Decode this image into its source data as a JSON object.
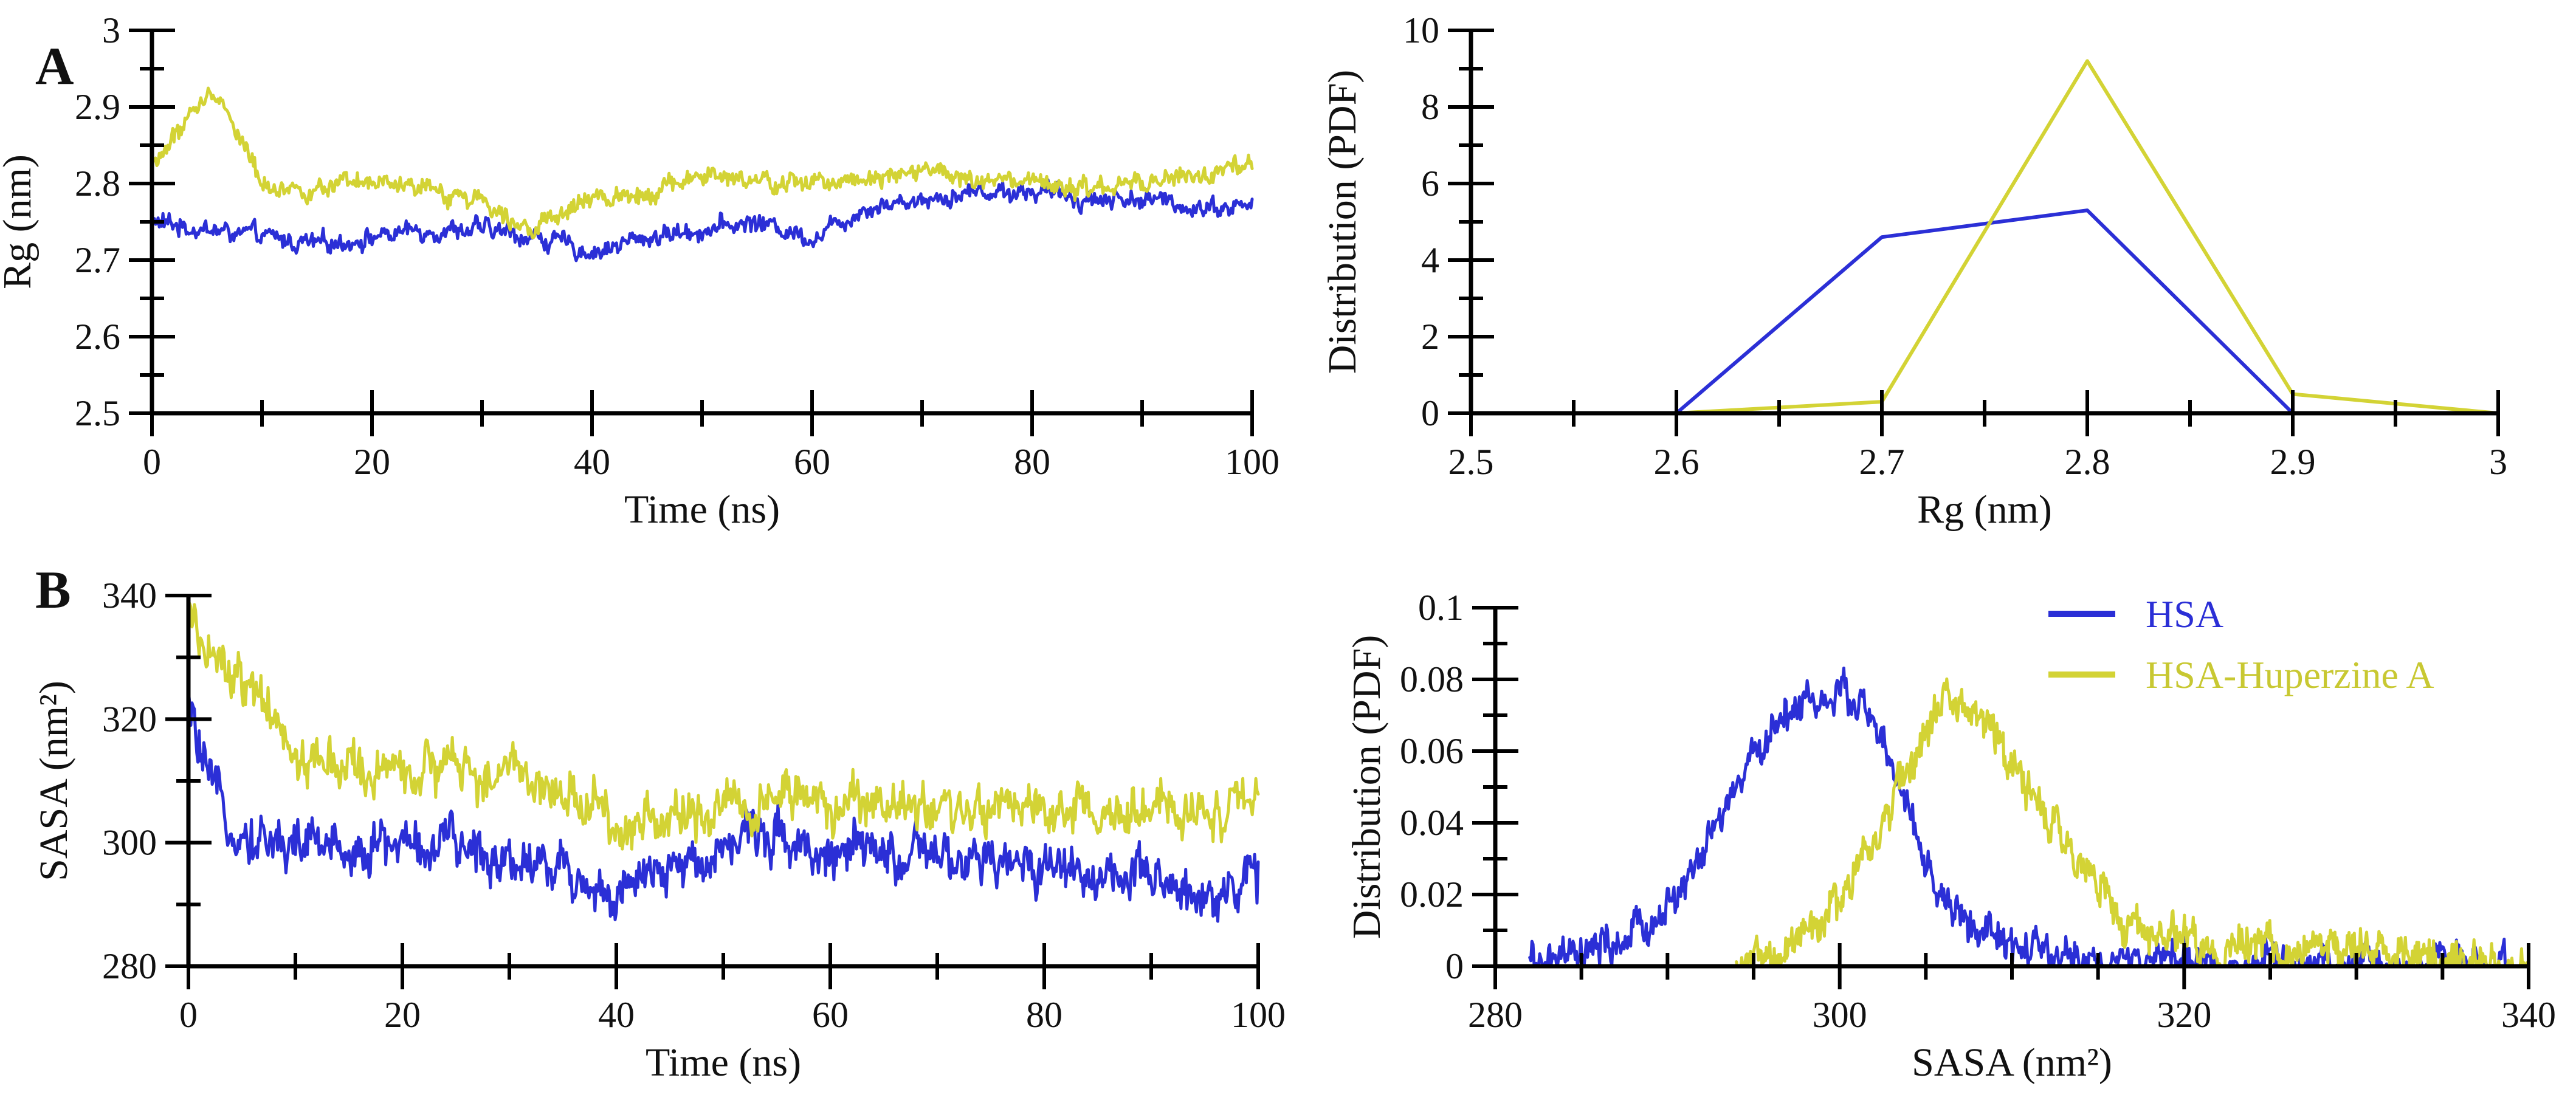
{
  "colors": {
    "hsa": "#2b2fd6",
    "hsa_huperzine_a": "#d3d335",
    "axis": "#000000"
  },
  "legend": [
    {
      "name": "HSA",
      "color": "#2b2fd6"
    },
    {
      "name": "HSA-Huperzine A",
      "color": "#d3d335"
    }
  ],
  "panel_labels": [
    "A",
    "B"
  ],
  "chart_data": [
    {
      "id": "rg-time",
      "type": "line",
      "panel": "A",
      "xlabel": "Time (ns)",
      "ylabel": "Rg (nm)",
      "xlim": [
        0,
        100
      ],
      "ylim": [
        2.5,
        3.0
      ],
      "x_ticks": [
        0,
        20,
        40,
        60,
        80,
        100
      ],
      "x_tick_labels": [
        "0",
        "20",
        "40",
        "60",
        "80",
        "100"
      ],
      "x_minor_step": 10,
      "y_ticks": [
        2.5,
        2.6,
        2.7,
        2.8,
        2.9,
        3.0
      ],
      "y_tick_labels": [
        "2.5",
        "2.6",
        "2.7",
        "2.8",
        "2.9",
        "3"
      ],
      "y_minor_step": 0.05,
      "noisy": true,
      "noise": 0.014,
      "series": [
        {
          "name": "HSA",
          "color": "#2b2fd6",
          "x": [
            0,
            5,
            10,
            15,
            20,
            25,
            30,
            35,
            40,
            45,
            50,
            55,
            60,
            65,
            70,
            75,
            80,
            85,
            90,
            95,
            100
          ],
          "y": [
            2.75,
            2.74,
            2.73,
            2.72,
            2.73,
            2.74,
            2.74,
            2.73,
            2.71,
            2.73,
            2.74,
            2.75,
            2.73,
            2.77,
            2.78,
            2.79,
            2.79,
            2.78,
            2.78,
            2.77,
            2.77
          ]
        },
        {
          "name": "HSA-Huperzine A",
          "color": "#d3d335",
          "x": [
            0,
            2,
            4,
            6,
            8,
            10,
            15,
            20,
            25,
            30,
            35,
            40,
            45,
            50,
            55,
            60,
            65,
            70,
            75,
            80,
            85,
            90,
            95,
            100
          ],
          "y": [
            2.82,
            2.86,
            2.9,
            2.92,
            2.86,
            2.8,
            2.79,
            2.8,
            2.79,
            2.78,
            2.74,
            2.78,
            2.79,
            2.81,
            2.8,
            2.8,
            2.81,
            2.82,
            2.8,
            2.8,
            2.79,
            2.8,
            2.81,
            2.82
          ]
        }
      ]
    },
    {
      "id": "rg-dist",
      "type": "line",
      "panel": "A",
      "xlabel": "Rg (nm)",
      "ylabel": "Distribution (PDF)",
      "xlim": [
        2.5,
        3.0
      ],
      "ylim": [
        0,
        10
      ],
      "x_ticks": [
        2.5,
        2.6,
        2.7,
        2.8,
        2.9,
        3.0
      ],
      "x_tick_labels": [
        "2.5",
        "2.6",
        "2.7",
        "2.8",
        "2.9",
        "3"
      ],
      "x_minor_step": 0.05,
      "y_ticks": [
        0,
        2,
        4,
        6,
        8,
        10
      ],
      "y_tick_labels": [
        "0",
        "2",
        "4",
        "6",
        "8",
        "10"
      ],
      "y_minor_step": 1,
      "noisy": false,
      "series": [
        {
          "name": "HSA",
          "color": "#2b2fd6",
          "x": [
            2.6,
            2.7,
            2.8,
            2.9,
            3.0
          ],
          "y": [
            0,
            4.6,
            5.3,
            0,
            0
          ]
        },
        {
          "name": "HSA-Huperzine A",
          "color": "#d3d335",
          "x": [
            2.6,
            2.7,
            2.8,
            2.9,
            3.0
          ],
          "y": [
            0,
            0.3,
            9.2,
            0.5,
            0
          ]
        }
      ]
    },
    {
      "id": "sasa-time",
      "type": "line",
      "panel": "B",
      "xlabel": "Time (ns)",
      "ylabel": "SASA (nm²)",
      "xlim": [
        0,
        100
      ],
      "ylim": [
        280,
        340
      ],
      "x_ticks": [
        0,
        20,
        40,
        60,
        80,
        100
      ],
      "x_tick_labels": [
        "0",
        "20",
        "40",
        "60",
        "80",
        "100"
      ],
      "x_minor_step": 10,
      "y_ticks": [
        280,
        300,
        320,
        340
      ],
      "y_tick_labels": [
        "280",
        "300",
        "320",
        "340"
      ],
      "y_minor_step": 10,
      "noisy": true,
      "noise": 4.5,
      "series": [
        {
          "name": "HSA",
          "color": "#2b2fd6",
          "x": [
            0,
            2,
            5,
            8,
            10,
            15,
            20,
            25,
            30,
            35,
            40,
            45,
            50,
            55,
            60,
            65,
            70,
            75,
            80,
            85,
            90,
            95,
            100
          ],
          "y": [
            322,
            308,
            302,
            300,
            300,
            299,
            300,
            299,
            298,
            296,
            291,
            295,
            300,
            302,
            298,
            298,
            297,
            296,
            297,
            295,
            293,
            292,
            294
          ]
        },
        {
          "name": "HSA-Huperzine A",
          "color": "#d3d335",
          "x": [
            0,
            2,
            5,
            8,
            10,
            15,
            20,
            25,
            30,
            35,
            40,
            45,
            50,
            55,
            60,
            65,
            70,
            75,
            80,
            85,
            90,
            95,
            100
          ],
          "y": [
            336,
            330,
            326,
            319,
            314,
            312,
            311,
            312,
            311,
            309,
            303,
            304,
            306,
            308,
            305,
            306,
            305,
            306,
            304,
            305,
            304,
            305,
            307
          ]
        }
      ]
    },
    {
      "id": "sasa-dist",
      "type": "line",
      "panel": "B",
      "xlabel": "SASA (nm²)",
      "ylabel": "Distribution (PDF)",
      "xlim": [
        280,
        340
      ],
      "ylim": [
        0,
        0.1
      ],
      "x_ticks": [
        280,
        300,
        320,
        340
      ],
      "x_tick_labels": [
        "280",
        "300",
        "320",
        "340"
      ],
      "x_minor_step": 5,
      "y_ticks": [
        0,
        0.02,
        0.04,
        0.06,
        0.08,
        0.1
      ],
      "y_tick_labels": [
        "0",
        "0.02",
        "0.04",
        "0.06",
        "0.08",
        "0.1"
      ],
      "y_minor_step": 0.01,
      "noisy": true,
      "noise": 0.006,
      "legend": "top-right",
      "series": [
        {
          "name": "HSA",
          "color": "#2b2fd6",
          "x": [
            282,
            285,
            288,
            290,
            292,
            294,
            296,
            298,
            300,
            301,
            302,
            303,
            304,
            305,
            306,
            308,
            310,
            312,
            314,
            316,
            318,
            320,
            325,
            330,
            335,
            340
          ],
          "y": [
            0,
            0.002,
            0.008,
            0.016,
            0.03,
            0.05,
            0.066,
            0.075,
            0.074,
            0.075,
            0.068,
            0.055,
            0.042,
            0.028,
            0.018,
            0.01,
            0.005,
            0.003,
            0.002,
            0.002,
            0.001,
            0.001,
            0,
            0,
            0,
            0
          ]
        },
        {
          "name": "HSA-Huperzine A",
          "color": "#d3d335",
          "x": [
            294,
            296,
            298,
            300,
            302,
            304,
            305,
            306,
            307,
            308,
            309,
            310,
            312,
            314,
            316,
            318,
            320,
            322,
            325,
            328,
            330,
            333,
            335,
            340
          ],
          "y": [
            0,
            0.003,
            0.008,
            0.018,
            0.035,
            0.055,
            0.065,
            0.073,
            0.075,
            0.07,
            0.065,
            0.058,
            0.042,
            0.028,
            0.017,
            0.01,
            0.006,
            0.005,
            0.006,
            0.005,
            0.004,
            0.005,
            0.002,
            0
          ]
        }
      ]
    }
  ]
}
